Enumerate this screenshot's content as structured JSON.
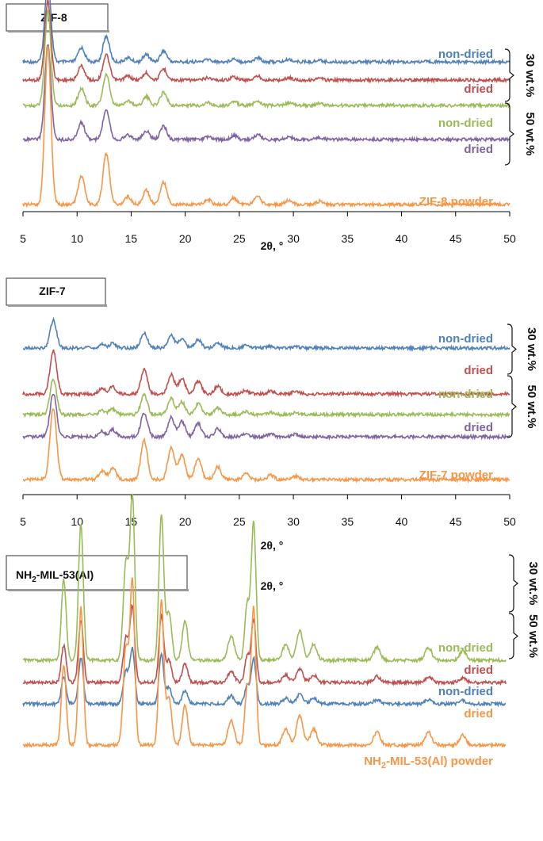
{
  "colors": {
    "blue": "#4F81BD",
    "red": "#C0504D",
    "green": "#9BBB59",
    "purple": "#8064A2",
    "orange": "#F79646",
    "text": "#111111"
  },
  "chart_data": [
    {
      "type": "line",
      "panel_label": "ZIF-8",
      "xlabel": "2θ, °",
      "xlim": [
        5,
        50
      ],
      "x_ticks": [
        "5",
        "10",
        "15",
        "20",
        "25",
        "30",
        "35",
        "40",
        "45",
        "50"
      ],
      "grid": false,
      "peaks": [
        [
          7.3,
          1.0,
          0.28
        ],
        [
          10.4,
          0.18,
          0.3
        ],
        [
          12.7,
          0.32,
          0.3
        ],
        [
          14.7,
          0.05,
          0.3
        ],
        [
          16.4,
          0.09,
          0.3
        ],
        [
          18.0,
          0.14,
          0.3
        ],
        [
          22.1,
          0.03,
          0.3
        ],
        [
          24.5,
          0.04,
          0.3
        ],
        [
          26.7,
          0.05,
          0.3
        ],
        [
          29.6,
          0.03,
          0.3
        ],
        [
          32.4,
          0.02,
          0.3
        ]
      ],
      "series": [
        {
          "name": "non-dried",
          "color": "blue",
          "peak_scale": 0.5
        },
        {
          "name": "dried",
          "color": "red",
          "peak_scale": 0.5
        },
        {
          "name": "non-dried",
          "color": "green",
          "peak_scale": 0.6
        },
        {
          "name": "dried",
          "color": "purple",
          "peak_scale": 0.6
        },
        {
          "name": "ZIF-8 powder",
          "color": "orange",
          "peak_scale": 1.0
        }
      ],
      "groups": [
        {
          "label": "30 wt.%"
        },
        {
          "label": "50 wt.%"
        }
      ]
    },
    {
      "type": "line",
      "panel_label": "ZIF-7",
      "xlabel": "2θ, °",
      "xlim": [
        5,
        50
      ],
      "x_ticks": [
        "5",
        "10",
        "15",
        "20",
        "25",
        "30",
        "35",
        "40",
        "45",
        "50"
      ],
      "grid": false,
      "peaks": [
        [
          7.8,
          1.0,
          0.3
        ],
        [
          12.3,
          0.12,
          0.3
        ],
        [
          13.3,
          0.16,
          0.3
        ],
        [
          16.2,
          0.55,
          0.3
        ],
        [
          18.7,
          0.45,
          0.3
        ],
        [
          19.7,
          0.35,
          0.3
        ],
        [
          21.2,
          0.3,
          0.3
        ],
        [
          23.0,
          0.18,
          0.3
        ],
        [
          25.6,
          0.08,
          0.3
        ],
        [
          27.9,
          0.06,
          0.3
        ],
        [
          30.2,
          0.05,
          0.3
        ]
      ],
      "series": [
        {
          "name": "non-dried",
          "color": "blue",
          "peak_scale": 0.35
        },
        {
          "name": "dried",
          "color": "red",
          "peak_scale": 0.55
        },
        {
          "name": "non-dried",
          "color": "green",
          "peak_scale": 0.45
        },
        {
          "name": "dried",
          "color": "purple",
          "peak_scale": 0.55
        },
        {
          "name": "ZIF-7 powder",
          "color": "orange",
          "peak_scale": 0.9
        }
      ],
      "groups": [
        {
          "label": "30 wt.%"
        },
        {
          "label": "50 wt.%"
        }
      ]
    },
    {
      "type": "line",
      "panel_label": "NH₂-MIL-53(Al)",
      "xlabel": "2θ, °",
      "xlim": [
        5,
        50
      ],
      "grid": false,
      "peaks": [
        [
          8.8,
          0.5,
          0.22
        ],
        [
          10.4,
          0.85,
          0.22
        ],
        [
          14.6,
          0.6,
          0.25
        ],
        [
          15.2,
          1.0,
          0.22
        ],
        [
          17.9,
          0.9,
          0.22
        ],
        [
          18.6,
          0.3,
          0.25
        ],
        [
          20.1,
          0.25,
          0.25
        ],
        [
          24.4,
          0.15,
          0.3
        ],
        [
          25.9,
          0.35,
          0.22
        ],
        [
          26.5,
          0.85,
          0.22
        ],
        [
          29.5,
          0.1,
          0.3
        ],
        [
          30.8,
          0.18,
          0.3
        ],
        [
          32.1,
          0.1,
          0.3
        ],
        [
          38.0,
          0.08,
          0.3
        ],
        [
          42.8,
          0.08,
          0.3
        ],
        [
          46.0,
          0.06,
          0.3
        ]
      ],
      "series": [
        {
          "name": "non-dried",
          "color": "green",
          "peak_scale": 1.2
        },
        {
          "name": "dried",
          "color": "red",
          "peak_scale": 0.55
        },
        {
          "name": "non-dried",
          "color": "blue",
          "peak_scale": 0.4
        },
        {
          "name": "dried",
          "color": "orange",
          "peak_scale": 1.2
        }
      ],
      "powder_label_prefix": "NH",
      "powder_label_sub": "2",
      "powder_label_suffix": "-MIL-53(Al)  powder",
      "groups": [
        {
          "label": "30 wt.%"
        },
        {
          "label": "50 wt.%"
        }
      ]
    }
  ]
}
